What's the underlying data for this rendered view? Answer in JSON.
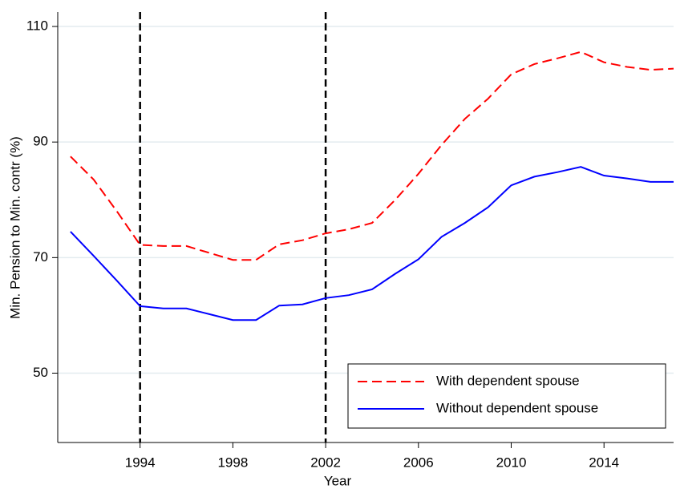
{
  "chart_data": {
    "type": "line",
    "x_label": "Year",
    "y_label": "Min. Pension to Min. contr (%)",
    "x": [
      1991,
      1992,
      1993,
      1994,
      1995,
      1996,
      1997,
      1998,
      1999,
      2000,
      2001,
      2002,
      2003,
      2004,
      2005,
      2006,
      2007,
      2008,
      2009,
      2010,
      2011,
      2012,
      2013,
      2014,
      2015,
      2016,
      2017
    ],
    "series": [
      {
        "name": "With dependent spouse",
        "color": "#ff0000",
        "dash": true,
        "values": [
          87.5,
          83.5,
          78,
          72.2,
          72,
          72,
          70.8,
          69.6,
          69.6,
          72.3,
          73,
          74.2,
          74.9,
          76,
          80,
          84.5,
          89.5,
          94,
          97.5,
          101.7,
          103.5,
          104.5,
          105.6,
          103.8,
          103,
          102.5,
          102.7
        ]
      },
      {
        "name": "Without dependent spouse",
        "color": "#0000ff",
        "dash": false,
        "values": [
          74.5,
          70.3,
          66,
          61.6,
          61.2,
          61.2,
          60.2,
          59.2,
          59.2,
          61.7,
          61.9,
          63,
          63.5,
          64.5,
          67.2,
          69.7,
          73.6,
          76,
          78.7,
          82.5,
          84,
          84.8,
          85.7,
          84.2,
          83.7,
          83.1,
          83.1
        ]
      }
    ],
    "vlines": [
      1994,
      2002
    ],
    "xlim": [
      1990.45,
      2017
    ],
    "ylim": [
      38,
      112.5
    ],
    "xticks": [
      1994,
      1998,
      2002,
      2006,
      2010,
      2014
    ],
    "yticks": [
      50,
      70,
      90,
      110
    ],
    "grid": true,
    "legend": "bottom-right"
  }
}
